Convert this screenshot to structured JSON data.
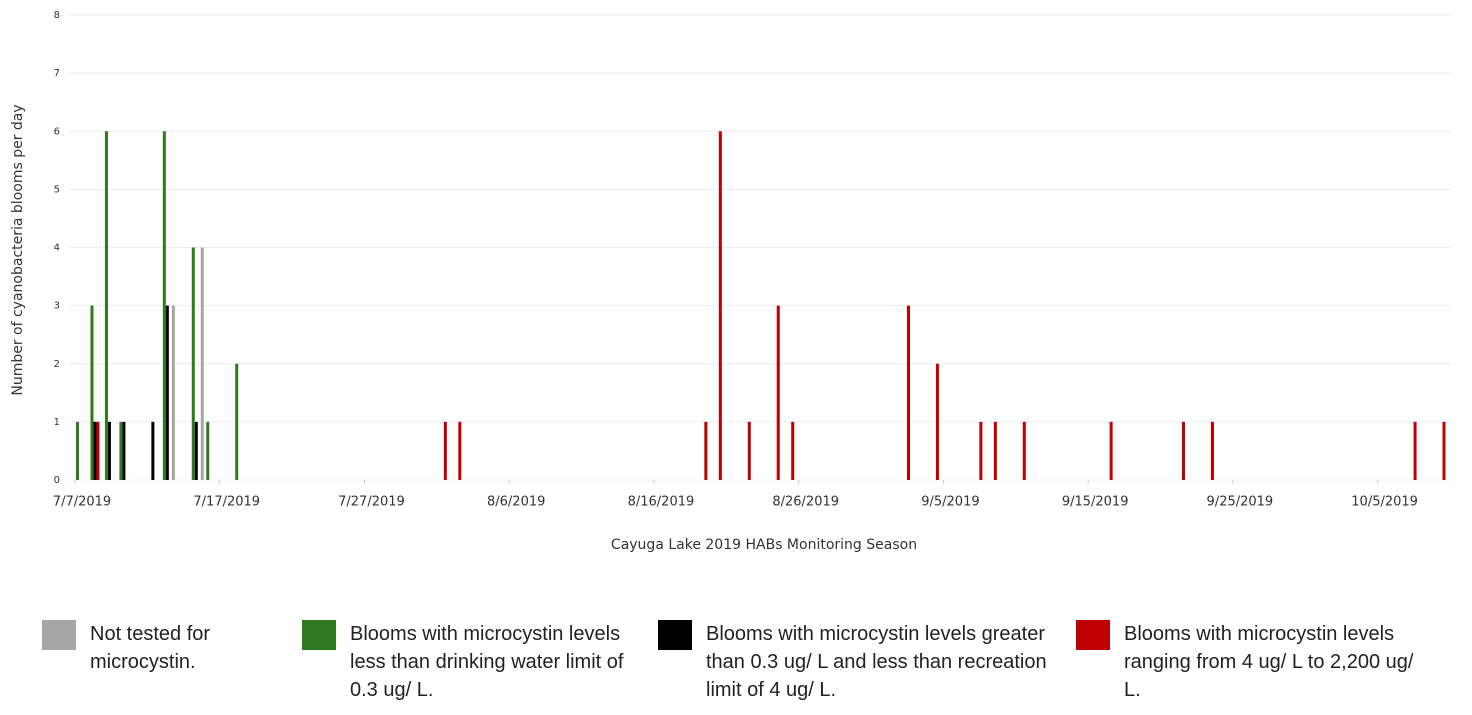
{
  "chart_data": {
    "type": "bar",
    "x_label": "Cayuga Lake 2019 HABs Monitoring Season",
    "y_label": "Number of cyanobacteria blooms per day",
    "x": [
      "7/7/2019",
      "7/8/2019",
      "7/9/2019",
      "7/10/2019",
      "7/12/2019",
      "7/13/2019",
      "7/15/2019",
      "7/16/2019",
      "7/18/2019",
      "8/1/2019",
      "8/2/2019",
      "8/19/2019",
      "8/20/2019",
      "8/22/2019",
      "8/24/2019",
      "8/25/2019",
      "9/2/2019",
      "9/4/2019",
      "9/7/2019",
      "9/8/2019",
      "9/10/2019",
      "9/16/2019",
      "9/21/2019",
      "9/23/2019",
      "10/7/2019",
      "10/9/2019"
    ],
    "series": [
      {
        "name": "Not tested for microcystin.",
        "color": "#a6a6a6",
        "values": [
          null,
          null,
          null,
          null,
          null,
          3,
          4,
          null,
          null,
          null,
          null,
          null,
          null,
          null,
          null,
          null,
          null,
          null,
          null,
          null,
          null,
          null,
          null,
          null,
          null,
          null
        ]
      },
      {
        "name": "Blooms with microcystin levels less than drinking water limit of 0.3 ug/ L.",
        "color": "#2f7a1f",
        "values": [
          1,
          3,
          6,
          1,
          null,
          6,
          4,
          1,
          2,
          null,
          null,
          null,
          null,
          null,
          null,
          null,
          null,
          null,
          null,
          null,
          null,
          null,
          null,
          null,
          null,
          null
        ]
      },
      {
        "name": "Blooms with microcystin levels greater than 0.3 ug/ L and less than recreation limit of 4 ug/ L.",
        "color": "#000000",
        "values": [
          null,
          1,
          1,
          1,
          1,
          3,
          1,
          null,
          null,
          null,
          null,
          null,
          null,
          null,
          null,
          null,
          null,
          null,
          null,
          null,
          null,
          null,
          null,
          null,
          null,
          null
        ]
      },
      {
        "name": "Blooms with microcystin levels ranging from 4 ug/ L to 2,200 ug/ L.",
        "color": "#c00000",
        "values": [
          null,
          1,
          null,
          null,
          null,
          null,
          null,
          null,
          null,
          1,
          1,
          1,
          6,
          1,
          3,
          1,
          3,
          2,
          1,
          1,
          1,
          1,
          1,
          1,
          1,
          1
        ]
      }
    ],
    "xlim": [
      "7/7/2019",
      "10/10/2019"
    ],
    "xticks": [
      "7/7/2019",
      "7/17/2019",
      "7/27/2019",
      "8/6/2019",
      "8/16/2019",
      "8/26/2019",
      "9/5/2019",
      "9/15/2019",
      "9/25/2019",
      "10/5/2019"
    ],
    "ylim": [
      0,
      8
    ],
    "yticks": [
      0,
      1,
      2,
      3,
      4,
      5,
      6,
      7,
      8
    ],
    "grid": true
  }
}
